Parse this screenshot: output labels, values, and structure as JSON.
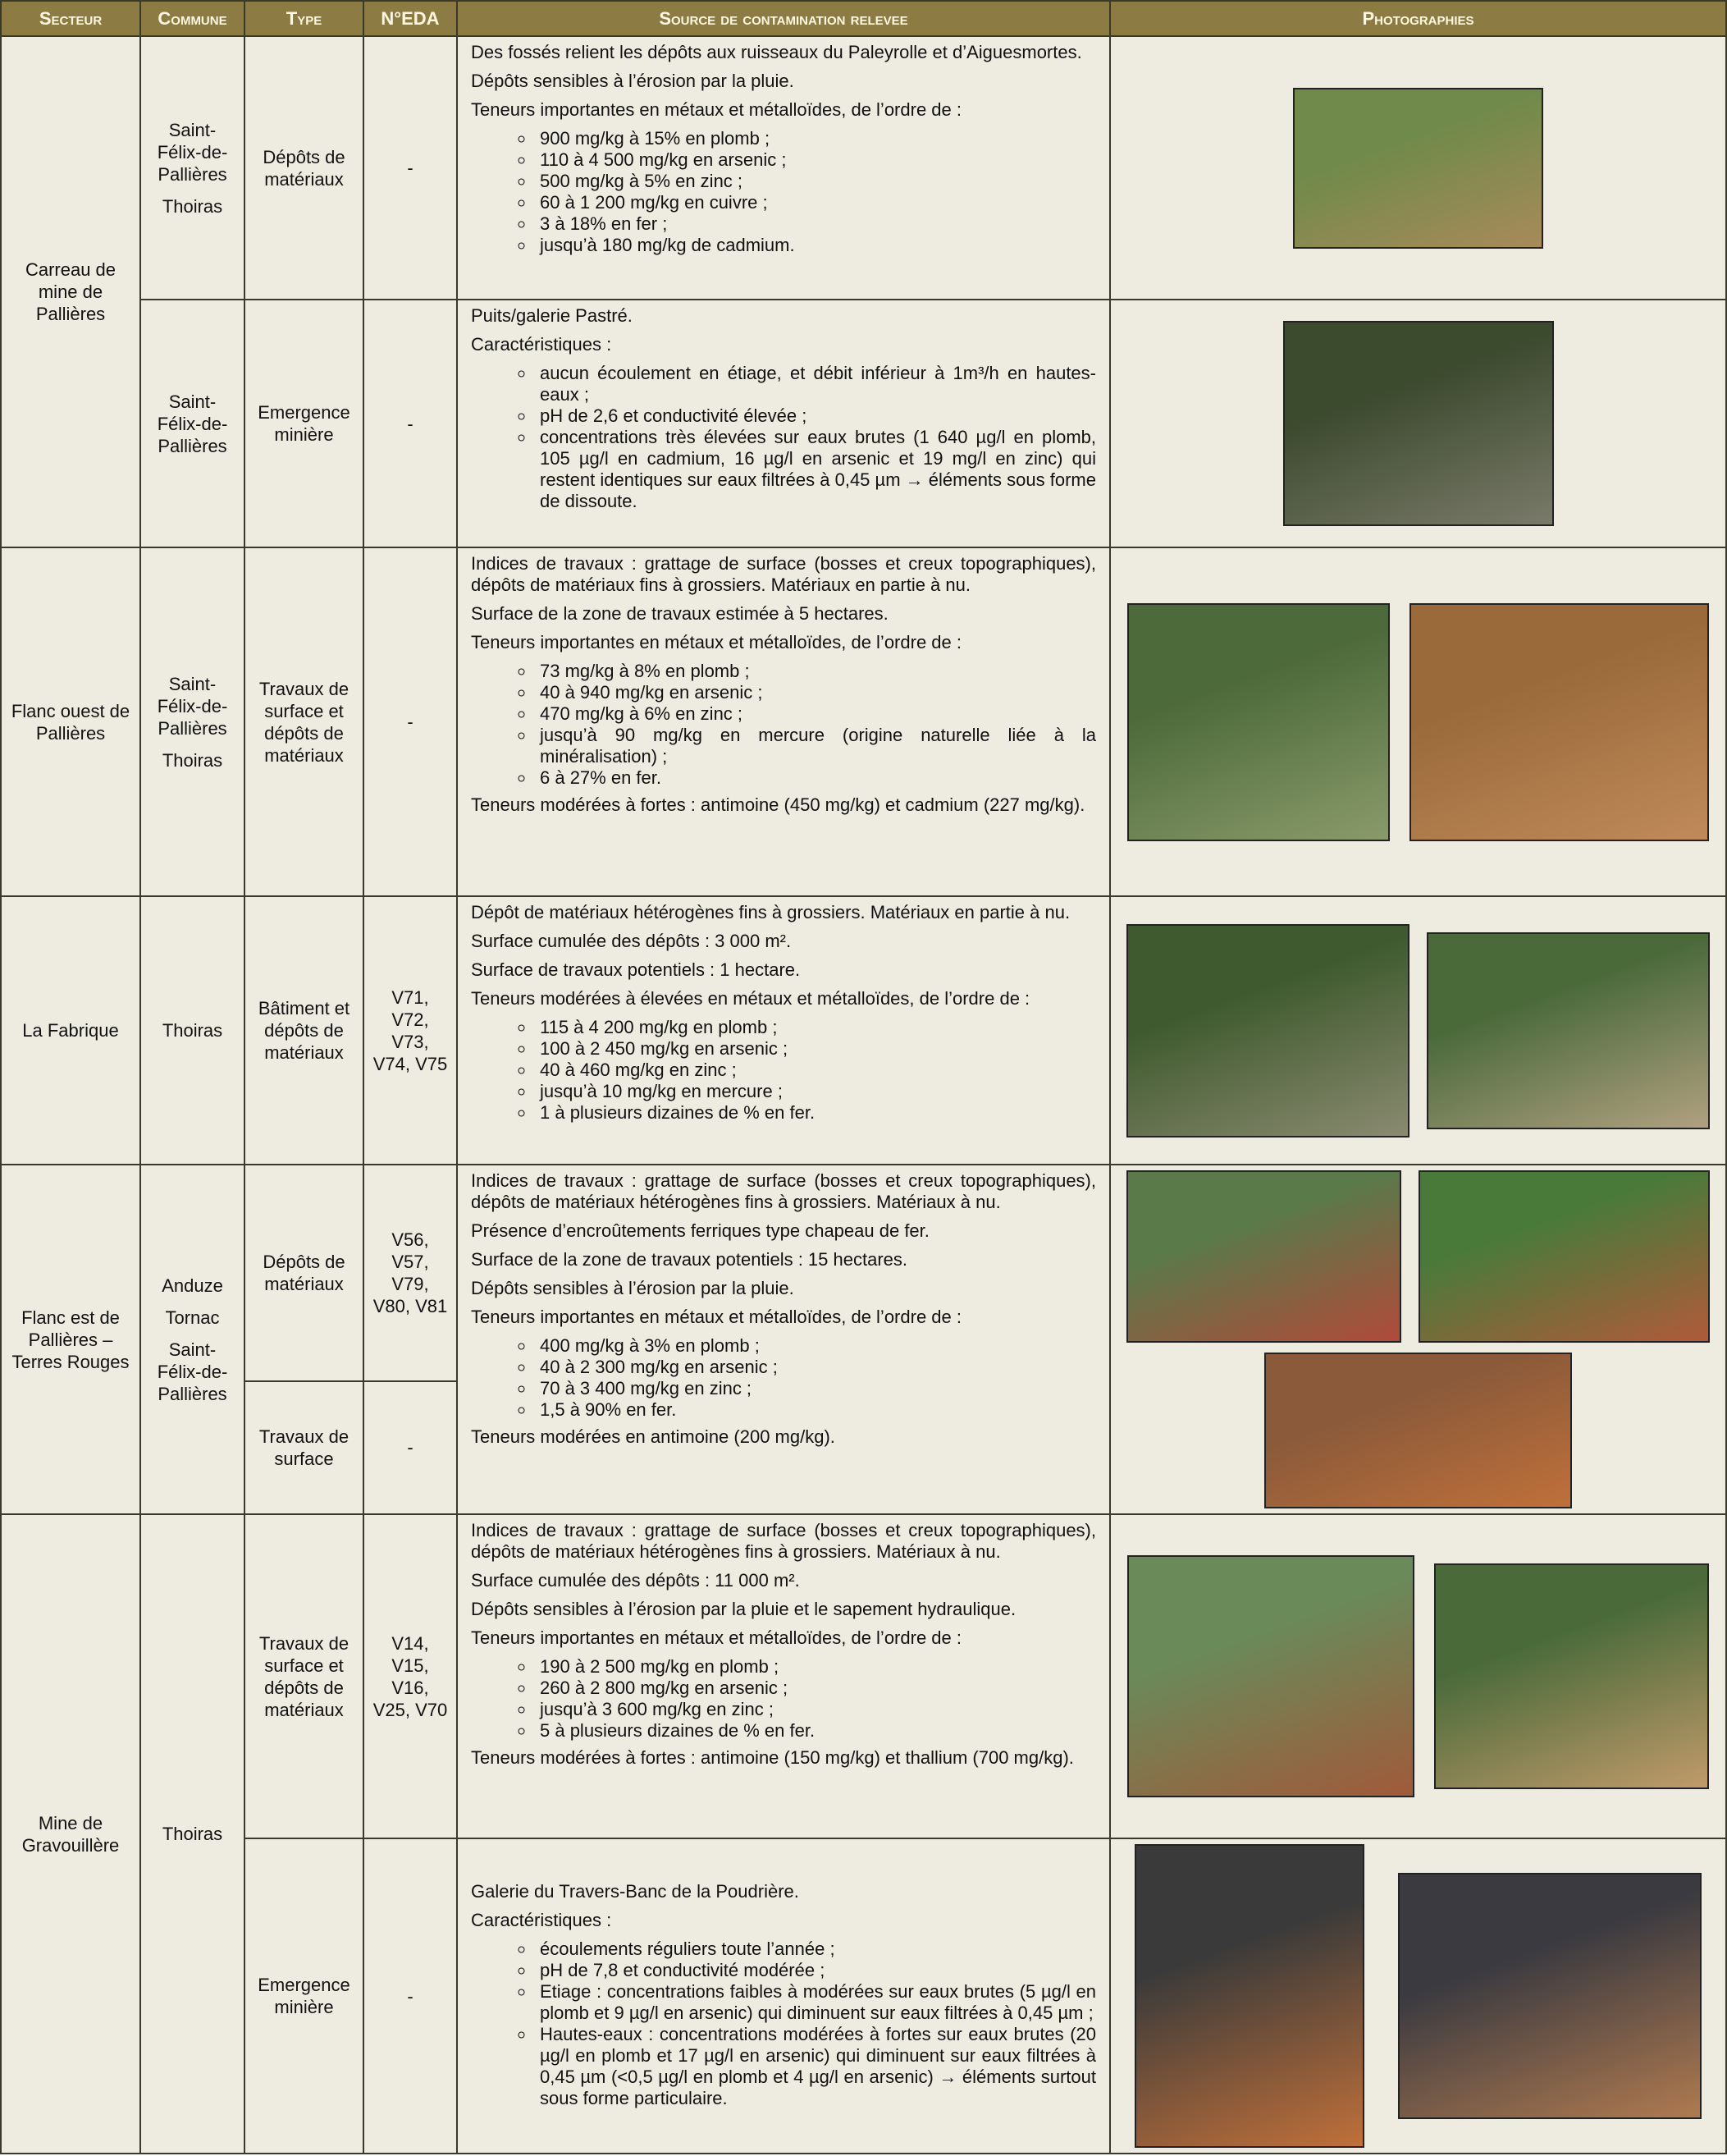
{
  "header": [
    "Secteur",
    "Commune",
    "Type",
    "N°EDA",
    "Source de contamination relevee",
    "Photographies"
  ],
  "sections": [
    {
      "secteur": "Carreau de mine de Pallières",
      "entries": [
        {
          "commune": [
            "Saint-Félix-de-Pallières",
            "Thoiras"
          ],
          "type": "Dépôts de matériaux",
          "eda": "-",
          "source": [
            {
              "text": "Des fossés relient les dépôts aux ruisseaux du Paleyrolle et d’Aiguesmortes."
            },
            {
              "text": "Dépôts sensibles à l’érosion par la pluie."
            },
            {
              "text": "Teneurs importantes en métaux et métalloïdes, de l’ordre de :"
            },
            {
              "items": [
                "900 mg/kg à 15% en plomb ;",
                "110 à 4 500 mg/kg en arsenic ;",
                "500 mg/kg à 5% en zinc ;",
                "60 à 1 200 mg/kg en cuivre ;",
                "3 à 18% en fer ;",
                "jusqu’à 180 mg/kg de cadmium."
              ]
            }
          ]
        },
        {
          "commune": [
            "Saint-Félix-de-Pallières"
          ],
          "type": "Emergence minière",
          "eda": "-",
          "source": [
            {
              "text": "Puits/galerie Pastré."
            },
            {
              "text": "Caractéristiques :"
            },
            {
              "items": [
                "aucun écoulement en étiage, et débit inférieur à 1m³/h en hautes-eaux ;",
                "pH de 2,6 et conductivité élevée ;",
                "concentrations très élevées sur eaux brutes (1 640 µg/l en plomb, 105 µg/l en cadmium, 16 µg/l en arsenic et 19 mg/l en zinc) qui restent identiques sur eaux filtrées à 0,45 µm → éléments sous forme de dissoute."
              ]
            }
          ]
        }
      ]
    },
    {
      "secteur": "Flanc ouest de Pallières",
      "entries": [
        {
          "commune": [
            "Saint-Félix-de-Pallières",
            "Thoiras"
          ],
          "type": "Travaux de surface et dépôts de matériaux",
          "eda": "-",
          "source": [
            {
              "text": "Indices de travaux : grattage de surface (bosses et creux topographiques), dépôts de matériaux fins à grossiers. Matériaux en partie à nu."
            },
            {
              "text": "Surface de la zone de travaux estimée à 5 hectares."
            },
            {
              "text": "Teneurs importantes en métaux et métalloïdes, de l’ordre de :"
            },
            {
              "items": [
                "73 mg/kg à 8% en plomb ;",
                "40 à 940 mg/kg en arsenic ;",
                "470 mg/kg à 6% en zinc ;",
                "jusqu’à 90 mg/kg en mercure (origine naturelle liée à la minéralisation) ;",
                "6 à 27% en fer."
              ]
            },
            {
              "text": "Teneurs modérées à fortes : antimoine (450 mg/kg) et cadmium (227 mg/kg)."
            }
          ]
        }
      ]
    },
    {
      "secteur": "La Fabrique",
      "entries": [
        {
          "commune": [
            "Thoiras"
          ],
          "type": "Bâtiment et dépôts de matériaux",
          "eda": "V71, V72, V73, V74, V75",
          "source": [
            {
              "text": "Dépôt de matériaux hétérogènes fins à grossiers. Matériaux en partie à nu."
            },
            {
              "text": "Surface cumulée des dépôts : 3 000 m²."
            },
            {
              "text": "Surface de travaux potentiels : 1 hectare."
            },
            {
              "text": "Teneurs modérées à élevées en métaux et métalloïdes, de l’ordre de :"
            },
            {
              "items": [
                "115 à 4 200 mg/kg en plomb ;",
                "100 à 2 450 mg/kg en arsenic ;",
                "40 à 460 mg/kg en zinc ;",
                "jusqu’à 10 mg/kg en mercure ;",
                "1 à plusieurs dizaines de % en fer."
              ]
            }
          ]
        }
      ]
    },
    {
      "secteur": "Flanc est de Pallières – Terres Rouges",
      "entries": [
        {
          "commune": [
            "Anduze",
            "Tornac",
            "Saint-Félix-de-Pallières"
          ],
          "type": "Dépôts de matériaux",
          "eda": "V56, V57, V79, V80, V81",
          "source": [
            {
              "text": "Indices de travaux : grattage de surface (bosses et creux topographiques), dépôts de matériaux hétérogènes fins à grossiers. Matériaux à nu."
            },
            {
              "text": "Présence d’encroûtements ferriques type chapeau de fer."
            },
            {
              "text": "Surface de la zone de travaux potentiels : 15 hectares."
            },
            {
              "text": "Dépôts sensibles à l’érosion par la pluie."
            },
            {
              "text": "Teneurs importantes en métaux et métalloïdes, de l’ordre de :"
            },
            {
              "items": [
                "400 mg/kg à 3% en plomb ;",
                "40 à 2 300 mg/kg en arsenic ;",
                "70 à 3 400 mg/kg en zinc ;",
                "1,5 à 90% en fer."
              ]
            },
            {
              "text": "Teneurs modérées en antimoine (200 mg/kg)."
            }
          ]
        },
        {
          "type": "Travaux de surface",
          "eda": "-"
        }
      ]
    },
    {
      "secteur": "Mine de Gravouillère",
      "entries": [
        {
          "commune": [
            "Thoiras"
          ],
          "type": "Travaux de surface et dépôts de matériaux",
          "eda": "V14, V15, V16, V25, V70",
          "source": [
            {
              "text": "Indices de travaux : grattage de surface (bosses et creux topographiques), dépôts de matériaux hétérogènes fins à grossiers. Matériaux à nu."
            },
            {
              "text": "Surface cumulée des dépôts : 11 000 m²."
            },
            {
              "text": "Dépôts sensibles à l’érosion par la pluie et le sapement hydraulique."
            },
            {
              "text": "Teneurs importantes en métaux et métalloïdes, de l’ordre de :"
            },
            {
              "items": [
                "190 à 2 500 mg/kg en plomb ;",
                "260 à 2 800 mg/kg en arsenic ;",
                "jusqu’à 3 600 mg/kg en zinc ;",
                "5 à plusieurs dizaines de % en fer."
              ]
            },
            {
              "text": "Teneurs modérées à fortes : antimoine (150 mg/kg) et thallium (700 mg/kg)."
            }
          ]
        },
        {
          "type": "Emergence minière",
          "eda": "-",
          "source": [
            {
              "text": "Galerie du Travers-Banc de la Poudrière."
            },
            {
              "text": "Caractéristiques :"
            },
            {
              "items": [
                "écoulements réguliers toute l’année ;",
                "pH de 7,8 et conductivité modérée ;",
                "Etiage : concentrations faibles à modérées sur eaux brutes (5 µg/l en plomb et 9 µg/l en arsenic) qui diminuent sur eaux filtrées à 0,45 µm ;",
                "Hautes-eaux : concentrations modérées à fortes sur eaux brutes (20 µg/l en plomb et 17 µg/l en arsenic) qui diminuent sur eaux filtrées à 0,45 µm (<0,5 µg/l en plomb et 4 µg/l en arsenic) → éléments surtout sous forme particulaire."
              ]
            }
          ]
        }
      ]
    }
  ]
}
